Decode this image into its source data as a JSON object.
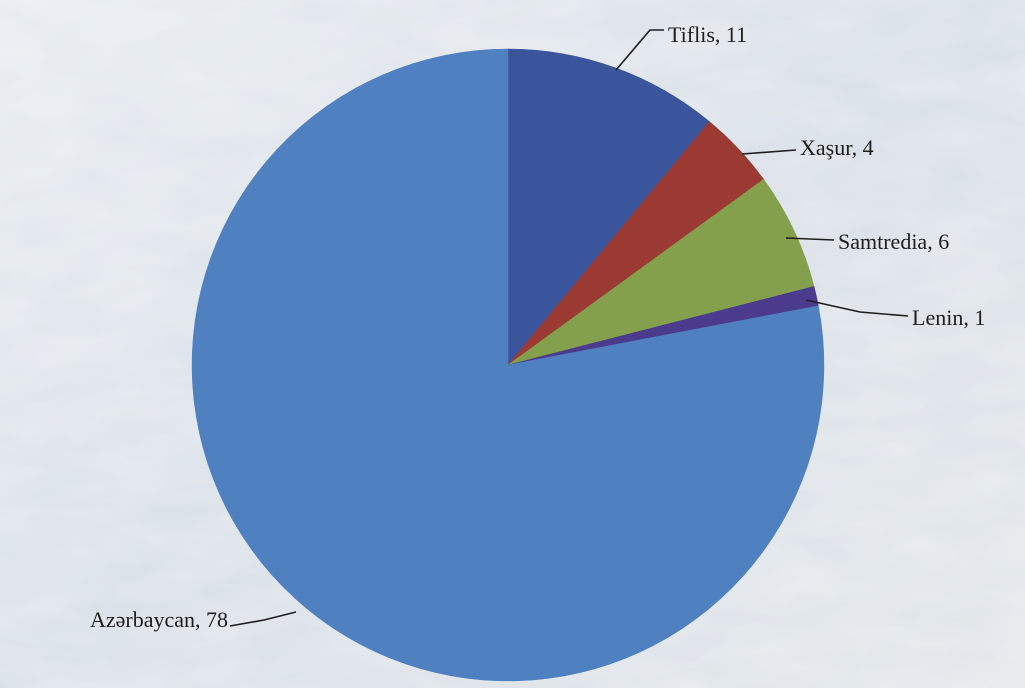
{
  "chart_data": {
    "type": "pie",
    "slices": [
      {
        "label": "Tiflis",
        "value": 11,
        "text": "Tiflis, 11",
        "color": "#3a559c"
      },
      {
        "label": "Xaşur",
        "value": 4,
        "text": "Xaşur, 4",
        "color": "#9b3a33"
      },
      {
        "label": "Samtredia",
        "value": 6,
        "text": "Samtredia, 6",
        "color": "#84a04c"
      },
      {
        "label": "Lenin",
        "value": 1,
        "text": "Lenin, 1",
        "color": "#4a3b8c"
      },
      {
        "label": "Azərbaycan",
        "value": 78,
        "text": "Azərbaycan, 78",
        "color": "#4f80c0"
      }
    ],
    "start_angle_deg": 0,
    "direction": "clockwise",
    "legend": "none"
  }
}
